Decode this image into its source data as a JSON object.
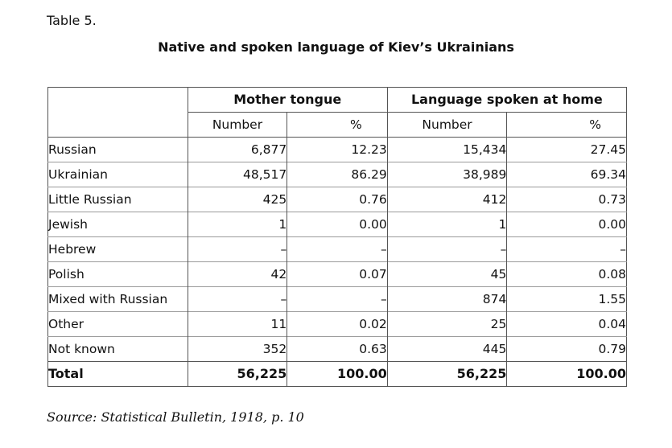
{
  "label": "Table 5.",
  "title": "Native and spoken language of Kiev’s Ukrainians",
  "table": {
    "group_headers": [
      "Mother tongue",
      "Language spoken at home"
    ],
    "sub_headers": [
      "Number",
      "%",
      "Number",
      "%"
    ],
    "rows": [
      {
        "label": "Russian",
        "mother_number": "6,877",
        "mother_pct": "12.23",
        "home_number": "15,434",
        "home_pct": "27.45"
      },
      {
        "label": "Ukrainian",
        "mother_number": "48,517",
        "mother_pct": "86.29",
        "home_number": "38,989",
        "home_pct": "69.34"
      },
      {
        "label": "Little Russian",
        "mother_number": "425",
        "mother_pct": "0.76",
        "home_number": "412",
        "home_pct": "0.73"
      },
      {
        "label": "Jewish",
        "mother_number": "1",
        "mother_pct": "0.00",
        "home_number": "1",
        "home_pct": "0.00"
      },
      {
        "label": "Hebrew",
        "mother_number": "–",
        "mother_pct": "–",
        "home_number": "–",
        "home_pct": "–"
      },
      {
        "label": "Polish",
        "mother_number": "42",
        "mother_pct": "0.07",
        "home_number": "45",
        "home_pct": "0.08"
      },
      {
        "label": "Mixed with Russian",
        "mother_number": "–",
        "mother_pct": "–",
        "home_number": "874",
        "home_pct": "1.55"
      },
      {
        "label": "Other",
        "mother_number": "11",
        "mother_pct": "0.02",
        "home_number": "25",
        "home_pct": "0.04"
      },
      {
        "label": "Not known",
        "mother_number": "352",
        "mother_pct": "0.63",
        "home_number": "445",
        "home_pct": "0.79"
      }
    ],
    "total": {
      "label": "Total",
      "mother_number": "56,225",
      "mother_pct": "100.00",
      "home_number": "56,225",
      "home_pct": "100.00"
    }
  },
  "source": "Source: Statistical Bulletin, 1918, p. 10"
}
